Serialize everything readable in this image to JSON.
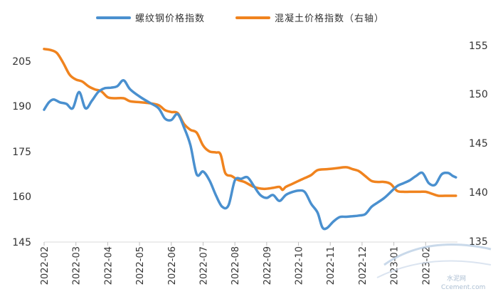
{
  "chart_data": {
    "type": "line",
    "title": "",
    "xlabel": "",
    "ylabel": "",
    "x_labels": [
      "2022-02",
      "2022-03",
      "2022-04",
      "2022-05",
      "2022-06",
      "2022-07",
      "2022-08",
      "2022-09",
      "2022-10",
      "2022-11",
      "2022-12",
      "2023-01",
      "2023-02"
    ],
    "x_range": [
      0,
      13
    ],
    "y_left": {
      "ticks": [
        "145",
        "160",
        "175",
        "190",
        "205"
      ],
      "range": [
        145,
        214
      ]
    },
    "y_right": {
      "ticks": [
        "135",
        "140",
        "145",
        "150",
        "155"
      ],
      "range": [
        135,
        155.6
      ]
    },
    "grid": false,
    "legend_position": "top",
    "series": [
      {
        "name": "螺纹钢价格指数",
        "axis": "left",
        "color": "#4a90cf",
        "points": [
          [
            0.0,
            190
          ],
          [
            0.15,
            192.5
          ],
          [
            0.3,
            193.5
          ],
          [
            0.5,
            192.5
          ],
          [
            0.7,
            192
          ],
          [
            0.9,
            190.5
          ],
          [
            1.1,
            196
          ],
          [
            1.3,
            190.5
          ],
          [
            1.5,
            193
          ],
          [
            1.7,
            196
          ],
          [
            1.9,
            197.3
          ],
          [
            2.1,
            197.5
          ],
          [
            2.3,
            198
          ],
          [
            2.5,
            200
          ],
          [
            2.7,
            197
          ],
          [
            3.0,
            194.5
          ],
          [
            3.3,
            192.5
          ],
          [
            3.6,
            190.5
          ],
          [
            3.8,
            187
          ],
          [
            4.0,
            186.5
          ],
          [
            4.2,
            188.5
          ],
          [
            4.4,
            184
          ],
          [
            4.6,
            178
          ],
          [
            4.8,
            168
          ],
          [
            5.0,
            169
          ],
          [
            5.2,
            166
          ],
          [
            5.4,
            161
          ],
          [
            5.6,
            157
          ],
          [
            5.8,
            157.5
          ],
          [
            6.0,
            166
          ],
          [
            6.2,
            166.5
          ],
          [
            6.4,
            167
          ],
          [
            6.6,
            164
          ],
          [
            6.8,
            161
          ],
          [
            7.0,
            160
          ],
          [
            7.2,
            161
          ],
          [
            7.4,
            159
          ],
          [
            7.6,
            161
          ],
          [
            7.8,
            162
          ],
          [
            8.0,
            162.5
          ],
          [
            8.2,
            162
          ],
          [
            8.4,
            158
          ],
          [
            8.6,
            155
          ],
          [
            8.75,
            150
          ],
          [
            8.9,
            149.8
          ],
          [
            9.1,
            152
          ],
          [
            9.3,
            153.5
          ],
          [
            9.5,
            153.6
          ],
          [
            9.7,
            153.8
          ],
          [
            9.9,
            154
          ],
          [
            10.1,
            154.5
          ],
          [
            10.3,
            157
          ],
          [
            10.5,
            158.5
          ],
          [
            10.7,
            160
          ],
          [
            10.9,
            162
          ],
          [
            11.1,
            164
          ],
          [
            11.3,
            165
          ],
          [
            11.5,
            166
          ],
          [
            11.7,
            167.5
          ],
          [
            11.9,
            168.5
          ],
          [
            12.1,
            165
          ],
          [
            12.3,
            164.5
          ],
          [
            12.5,
            168
          ],
          [
            12.7,
            168.5
          ],
          [
            12.85,
            167.5
          ],
          [
            12.95,
            167
          ]
        ]
      },
      {
        "name": "混凝土价格指数（右轴）",
        "axis": "right",
        "color": "#f0831e",
        "points": [
          [
            0.0,
            154.6
          ],
          [
            0.2,
            154.5
          ],
          [
            0.4,
            154.2
          ],
          [
            0.6,
            153.2
          ],
          [
            0.8,
            152.0
          ],
          [
            1.0,
            151.5
          ],
          [
            1.2,
            151.3
          ],
          [
            1.4,
            150.8
          ],
          [
            1.6,
            150.5
          ],
          [
            1.8,
            150.3
          ],
          [
            2.0,
            149.7
          ],
          [
            2.2,
            149.6
          ],
          [
            2.5,
            149.6
          ],
          [
            2.7,
            149.3
          ],
          [
            3.0,
            149.2
          ],
          [
            3.3,
            149.1
          ],
          [
            3.6,
            148.9
          ],
          [
            3.8,
            148.4
          ],
          [
            4.0,
            148.2
          ],
          [
            4.2,
            148.1
          ],
          [
            4.4,
            147.0
          ],
          [
            4.6,
            146.4
          ],
          [
            4.8,
            146.1
          ],
          [
            5.0,
            144.8
          ],
          [
            5.2,
            144.2
          ],
          [
            5.4,
            144.1
          ],
          [
            5.55,
            143.9
          ],
          [
            5.7,
            142.0
          ],
          [
            5.9,
            141.7
          ],
          [
            6.1,
            141.3
          ],
          [
            6.3,
            141.1
          ],
          [
            6.6,
            140.6
          ],
          [
            6.9,
            140.4
          ],
          [
            7.2,
            140.5
          ],
          [
            7.4,
            140.6
          ],
          [
            7.5,
            140.3
          ],
          [
            7.6,
            140.6
          ],
          [
            7.8,
            140.9
          ],
          [
            8.0,
            141.2
          ],
          [
            8.2,
            141.5
          ],
          [
            8.4,
            141.8
          ],
          [
            8.6,
            142.3
          ],
          [
            8.9,
            142.4
          ],
          [
            9.2,
            142.5
          ],
          [
            9.5,
            142.6
          ],
          [
            9.7,
            142.4
          ],
          [
            9.9,
            142.2
          ],
          [
            10.1,
            141.7
          ],
          [
            10.3,
            141.2
          ],
          [
            10.5,
            141.1
          ],
          [
            10.7,
            141.1
          ],
          [
            10.9,
            140.9
          ],
          [
            11.1,
            140.2
          ],
          [
            11.3,
            140.1
          ],
          [
            11.5,
            140.1
          ],
          [
            11.8,
            140.1
          ],
          [
            12.0,
            140.1
          ],
          [
            12.2,
            139.9
          ],
          [
            12.4,
            139.7
          ],
          [
            12.6,
            139.7
          ],
          [
            12.8,
            139.7
          ],
          [
            12.95,
            139.7
          ]
        ]
      }
    ]
  },
  "watermark": {
    "text": "Ccement.com",
    "logo_text": "水泥网"
  }
}
